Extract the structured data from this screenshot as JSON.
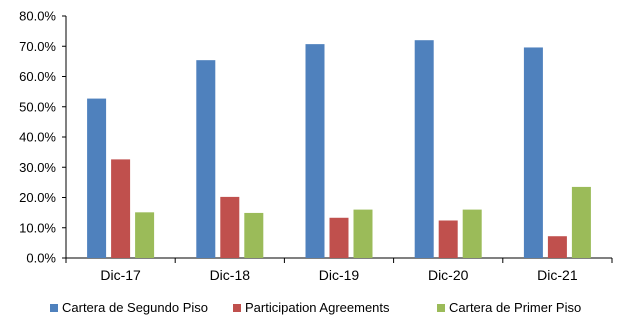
{
  "chart_data": {
    "type": "bar",
    "categories": [
      "Dic-17",
      "Dic-18",
      "Dic-19",
      "Dic-20",
      "Dic-21"
    ],
    "series": [
      {
        "name": "Cartera de Segundo Piso",
        "color": "#4F81BD",
        "values": [
          52.7,
          65.4,
          70.7,
          72.0,
          69.6
        ]
      },
      {
        "name": "Participation Agreements",
        "color": "#C0504D",
        "values": [
          32.6,
          20.2,
          13.3,
          12.4,
          7.2
        ]
      },
      {
        "name": "Cartera de Primer Piso",
        "color": "#9BBB59",
        "values": [
          15.1,
          14.9,
          16.0,
          16.0,
          23.5
        ]
      }
    ],
    "ylim": [
      0,
      80
    ],
    "yticks": [
      0,
      10,
      20,
      30,
      40,
      50,
      60,
      70,
      80
    ],
    "ytick_labels": [
      "0.0%",
      "10.0%",
      "20.0%",
      "30.0%",
      "40.0%",
      "50.0%",
      "60.0%",
      "70.0%",
      "80.0%"
    ],
    "grid": false,
    "legend_position": "bottom"
  }
}
